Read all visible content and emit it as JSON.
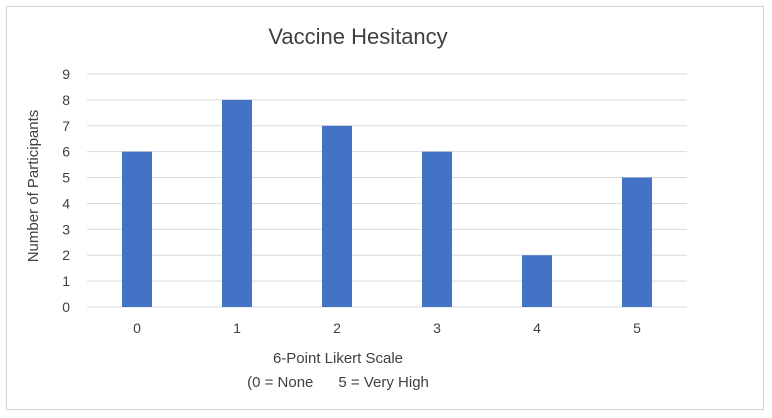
{
  "chart_data": {
    "type": "bar",
    "title": "Vaccine Hesitancy",
    "xlabel_lines": [
      "6-Point Likert Scale",
      "(0 = None      5 = Very High"
    ],
    "ylabel": "Number of Participants",
    "categories": [
      "0",
      "1",
      "2",
      "3",
      "4",
      "5"
    ],
    "values": [
      6,
      8,
      7,
      6,
      2,
      5
    ],
    "ylim": [
      0,
      9
    ],
    "yticks": [
      "0",
      "1",
      "2",
      "3",
      "4",
      "5",
      "6",
      "7",
      "8",
      "9"
    ],
    "grid": true,
    "legend": "none",
    "bar_color": "#4472C4",
    "grid_color": "#d9d9d9"
  }
}
